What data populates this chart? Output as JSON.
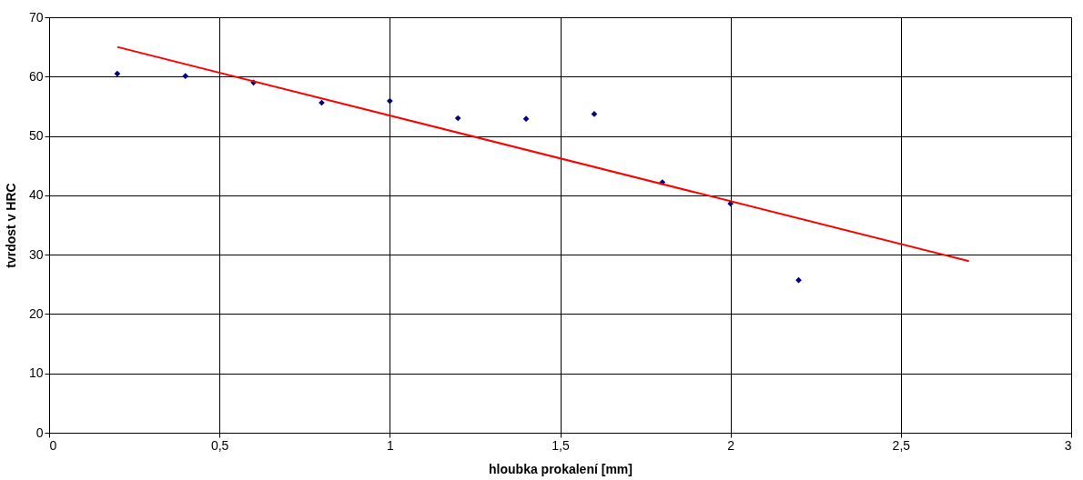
{
  "chart_data": {
    "type": "scatter",
    "xlabel": "hloubka prokalení [mm]",
    "ylabel": "tvrdost v HRC",
    "x": [
      0.2,
      0.4,
      0.6,
      0.8,
      1.0,
      1.2,
      1.4,
      1.6,
      1.8,
      2.0,
      2.2
    ],
    "series": [
      {
        "color": "#000080",
        "marker": "diamond",
        "values": [
          60.5,
          60.1,
          59.0,
          55.6,
          55.9,
          53.0,
          52.9,
          53.7,
          42.2,
          38.6,
          25.7
        ]
      },
      {
        "type": "line",
        "color": "#ff0000",
        "marker": "none",
        "line_style": "solid",
        "x": [
          0.2,
          2.7
        ],
        "values": [
          65,
          28.9
        ]
      }
    ],
    "xlim": [
      0,
      3
    ],
    "xticks": [
      0,
      {
        "value": 0.5,
        "label": "0,5"
      },
      1,
      {
        "value": 1.5,
        "label": "1,5"
      },
      2,
      {
        "value": 2.5,
        "label": "2,5"
      },
      3
    ],
    "ylim": [
      0,
      70
    ],
    "yticks": [
      0,
      10,
      20,
      30,
      40,
      50,
      60,
      70
    ],
    "grid": true
  }
}
